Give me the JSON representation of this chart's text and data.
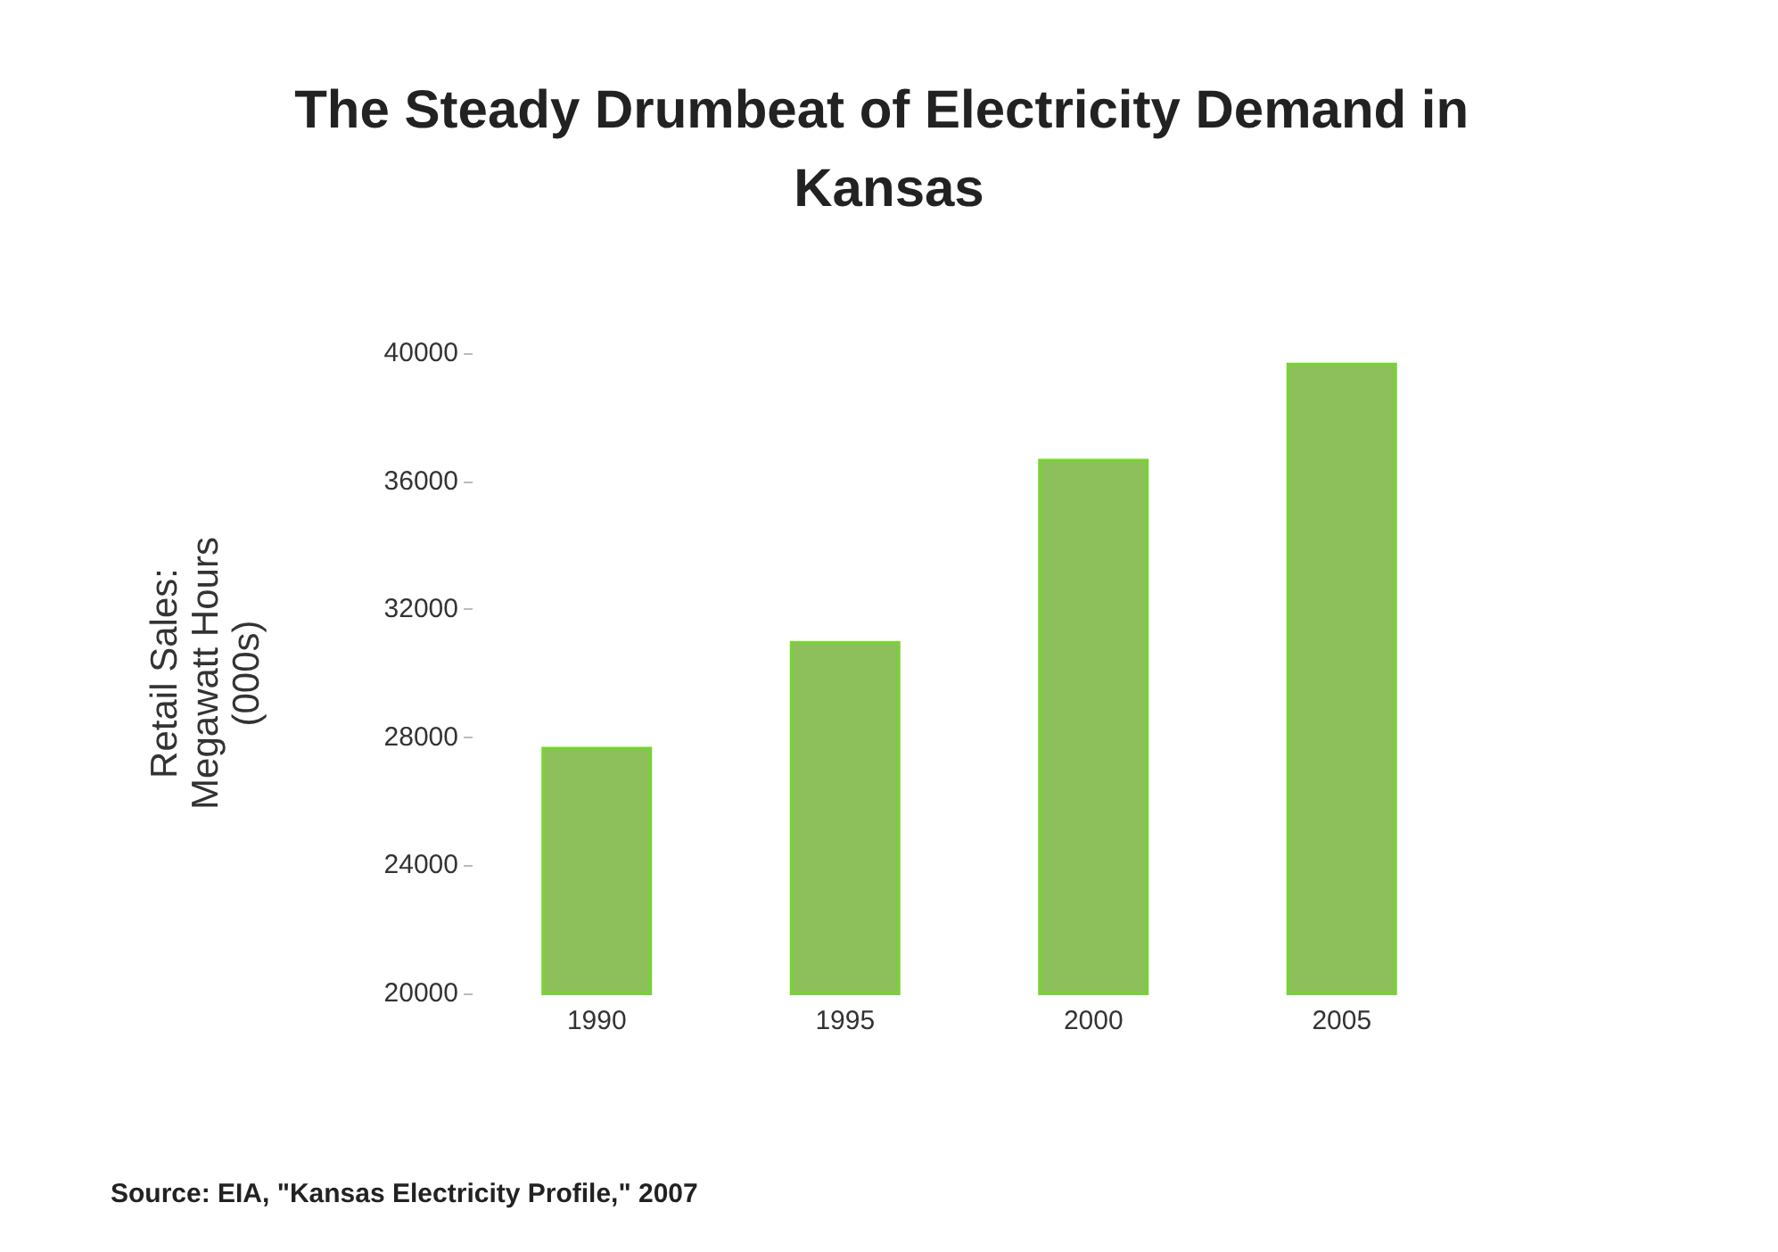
{
  "chart_data": {
    "type": "bar",
    "title": "The Steady Drumbeat of Electricity Demand in Kansas",
    "ylabel": "Retail Sales:\nMegawatt Hours\n(000s)",
    "categories": [
      "1990",
      "1995",
      "2000",
      "2005"
    ],
    "values": [
      27700,
      31000,
      36700,
      39700
    ],
    "color": "#8dbf5a",
    "ylim": [
      20000,
      40000
    ],
    "yticks": [
      20000,
      24000,
      28000,
      32000,
      36000,
      40000
    ],
    "annotations": [
      "Source: EIA, \"Kansas Electricity Profile,\" 2007"
    ]
  }
}
